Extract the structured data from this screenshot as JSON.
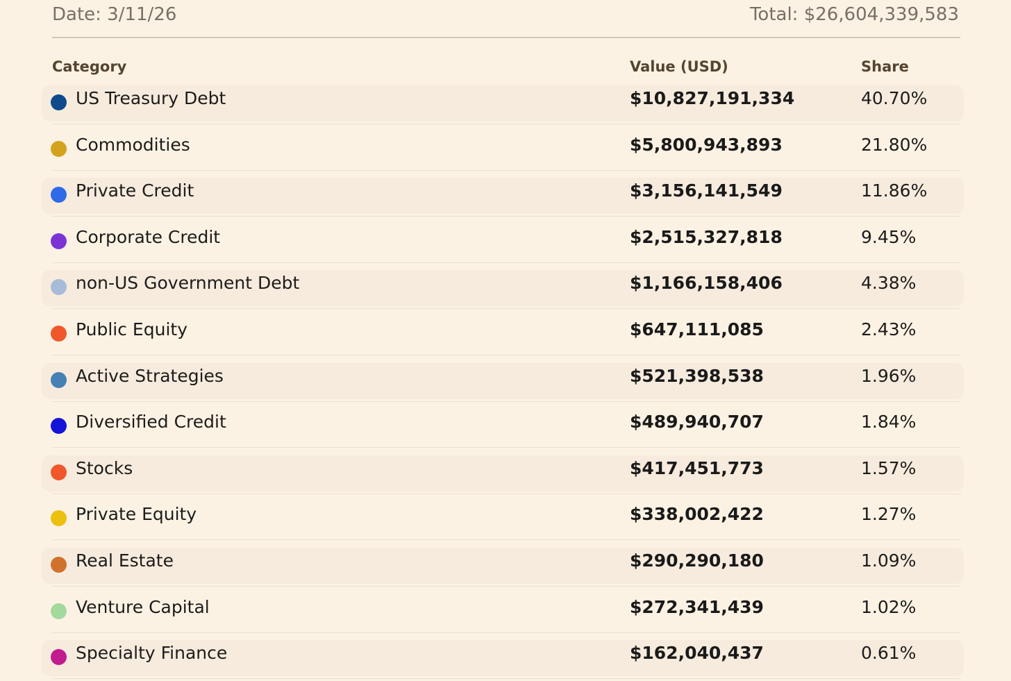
{
  "header": {
    "date": "Date: 3/11/26",
    "total": "Total: $26,604,339,583"
  },
  "columns": {
    "category": "Category",
    "value": "Value (USD)",
    "share": "Share"
  },
  "chart_data": {
    "type": "table",
    "title": "",
    "columns": [
      "Category",
      "Value (USD)",
      "Share"
    ],
    "rows": [
      {
        "category": "US Treasury Debt",
        "value": "$10,827,191,334",
        "share": "40.70%",
        "color": "#0e4a8c"
      },
      {
        "category": "Commodities",
        "value": "$5,800,943,893",
        "share": "21.80%",
        "color": "#d4a21f"
      },
      {
        "category": "Private Credit",
        "value": "$3,156,141,549",
        "share": "11.86%",
        "color": "#2f6ae8"
      },
      {
        "category": "Corporate Credit",
        "value": "$2,515,327,818",
        "share": "9.45%",
        "color": "#7c33d6"
      },
      {
        "category": "non-US Government Debt",
        "value": "$1,166,158,406",
        "share": "4.38%",
        "color": "#a6bcd8"
      },
      {
        "category": "Public Equity",
        "value": "$647,111,085",
        "share": "2.43%",
        "color": "#f0572a"
      },
      {
        "category": "Active Strategies",
        "value": "$521,398,538",
        "share": "1.96%",
        "color": "#4680b4"
      },
      {
        "category": "Diversified Credit",
        "value": "$489,940,707",
        "share": "1.84%",
        "color": "#1414d9"
      },
      {
        "category": "Stocks",
        "value": "$417,451,773",
        "share": "1.57%",
        "color": "#f0572a"
      },
      {
        "category": "Private Equity",
        "value": "$338,002,422",
        "share": "1.27%",
        "color": "#ebc00e"
      },
      {
        "category": "Real Estate",
        "value": "$290,290,180",
        "share": "1.09%",
        "color": "#d0722c"
      },
      {
        "category": "Venture Capital",
        "value": "$272,341,439",
        "share": "1.02%",
        "color": "#a3d99c"
      },
      {
        "category": "Specialty Finance",
        "value": "$162,040,437",
        "share": "0.61%",
        "color": "#c21c8e"
      }
    ]
  }
}
